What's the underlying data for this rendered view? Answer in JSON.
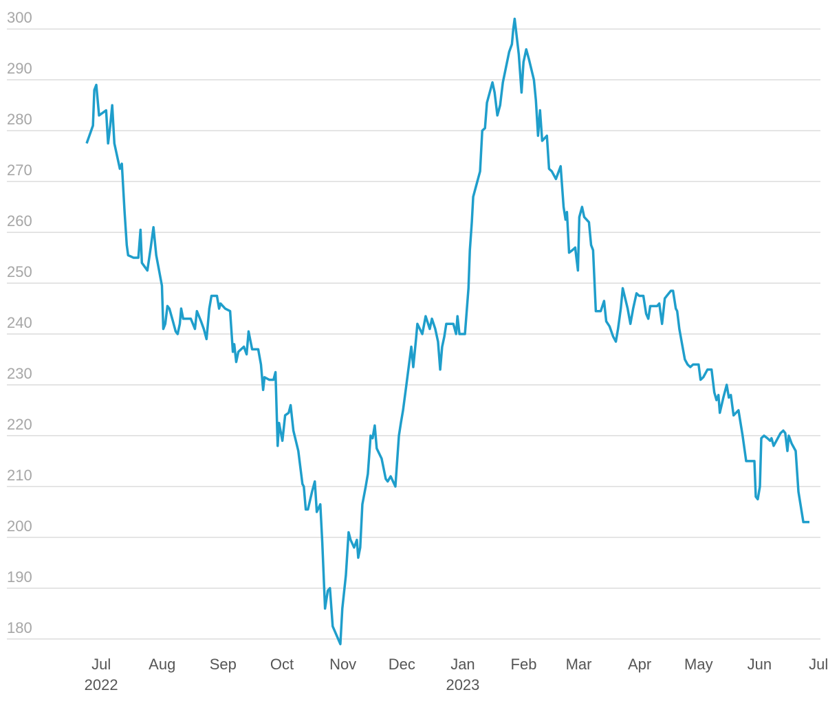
{
  "chart_data": {
    "type": "line",
    "x": [
      -7.4,
      -4.2,
      -3.5,
      -2.5,
      -1.1,
      2.5,
      3.5,
      4.6,
      5.6,
      6.7,
      9.5,
      10.5,
      11.9,
      13.0,
      13.7,
      16.5,
      18.9,
      20.0,
      20.7,
      23.5,
      25.2,
      26.6,
      28.0,
      30.9,
      31.6,
      32.6,
      33.7,
      34.7,
      36.5,
      37.9,
      38.9,
      40.0,
      40.7,
      41.7,
      45.6,
      47.7,
      48.7,
      50.8,
      52.2,
      53.6,
      55.0,
      56.1,
      58.9,
      60.0,
      60.7,
      63.1,
      65.6,
      67.0,
      67.7,
      68.7,
      69.8,
      72.6,
      74.0,
      75.0,
      76.8,
      79.9,
      81.3,
      82.4,
      83.1,
      85.5,
      87.7,
      88.7,
      89.8,
      90.5,
      92.2,
      93.6,
      95.4,
      96.4,
      97.8,
      100.3,
      102.4,
      103.1,
      104.1,
      105.2,
      107.3,
      108.7,
      109.7,
      111.5,
      112.5,
      113.9,
      115.3,
      116.4,
      117.8,
      121.7,
      122.7,
      124.5,
      125.9,
      126.9,
      128.7,
      130.1,
      130.8,
      131.8,
      132.9,
      134.6,
      135.7,
      137.1,
      138.1,
      139.2,
      140.2,
      142.7,
      144.8,
      145.8,
      147.3,
      149.7,
      151.5,
      152.5,
      153.6,
      155.3,
      157.8,
      158.8,
      160.2,
      160.9,
      163.4,
      165.1,
      167.2,
      168.3,
      170.0,
      171.4,
      172.5,
      173.5,
      174.6,
      175.6,
      179.2,
      180.6,
      181.3,
      182.3,
      185.1,
      186.9,
      187.6,
      188.6,
      189.3,
      190.7,
      192.1,
      192.8,
      193.9,
      195.3,
      196.3,
      199.1,
      200.2,
      201.6,
      203.0,
      204.4,
      207.6,
      209.0,
      209.7,
      210.4,
      212.5,
      213.9,
      214.9,
      216.3,
      217.7,
      220.2,
      221.2,
      222.3,
      223.3,
      224.4,
      226.8,
      227.9,
      229.3,
      231.4,
      233.8,
      235.3,
      236.3,
      237.0,
      238.1,
      239.8,
      241.2,
      242.6,
      243.3,
      244.7,
      245.8,
      248.2,
      249.3,
      250.3,
      251.7,
      254.2,
      255.9,
      257.0,
      258.7,
      260.5,
      261.9,
      263.0,
      264.4,
      265.4,
      267.9,
      269.3,
      270.7,
      272.4,
      273.8,
      275.9,
      277.3,
      278.4,
      279.4,
      282.9,
      284.0,
      285.4,
      286.8,
      287.8,
      289.9,
      291.0,
      292.4,
      293.1,
      294.2,
      295.6,
      297.0,
      298.4,
      299.8,
      301.2,
      304.0,
      305.0,
      306.4,
      308.5,
      310.6,
      312.0,
      313.1,
      314.1,
      314.8,
      316.6,
      318.3,
      319.4,
      320.4,
      321.8,
      324.3,
      326.4,
      328.2,
      332.4,
      333.1,
      334.1,
      335.2,
      335.9,
      337.3,
      339.0,
      340.4,
      341.1,
      342.2,
      343.6,
      345.7,
      347.1,
      348.1,
      349.2,
      349.9,
      351.3,
      353.4,
      354.8,
      357.3,
      360.4
    ],
    "series": [
      {
        "color": "#1f9ecb",
        "values": [
          277.5,
          281,
          288,
          289,
          283,
          284,
          277.5,
          281,
          285,
          277.5,
          272.5,
          273.5,
          264,
          257.5,
          255.5,
          255,
          255,
          260.5,
          254,
          252.5,
          257,
          261,
          255.5,
          249.5,
          241,
          242,
          245.5,
          245,
          242.5,
          240.5,
          240,
          242,
          245,
          243,
          243,
          241,
          244.5,
          242.5,
          241,
          239,
          245,
          247.5,
          247.5,
          245,
          246,
          245,
          244.5,
          236.5,
          238,
          234.5,
          236.5,
          237.5,
          236,
          240.5,
          237,
          237,
          234,
          229,
          231.5,
          231,
          231,
          232.5,
          218,
          222.5,
          219,
          224,
          224.5,
          226,
          221,
          217,
          210.5,
          210,
          205.5,
          205.5,
          209,
          211,
          205,
          206.5,
          199,
          186,
          189.5,
          190,
          182.5,
          179,
          186,
          192.5,
          201,
          199.5,
          198,
          199.5,
          196,
          198,
          206.5,
          210,
          212.5,
          220,
          219.5,
          222,
          217.5,
          215.5,
          211.5,
          211,
          212,
          210,
          220,
          222.5,
          225,
          230,
          237.5,
          233.5,
          239,
          242,
          240,
          243.5,
          241,
          243,
          241,
          238.5,
          233,
          237.5,
          239.5,
          242,
          242,
          240,
          243.5,
          240,
          240,
          249,
          256.5,
          262,
          267,
          269,
          271,
          272,
          280,
          280.5,
          285.5,
          289.5,
          287.5,
          283,
          285,
          289.5,
          295.5,
          297,
          300,
          302,
          295,
          287.5,
          293.5,
          296,
          294,
          290,
          286,
          279,
          284,
          278,
          279,
          272.5,
          272,
          270.5,
          273,
          265,
          262.5,
          264,
          256,
          256.5,
          257,
          252.5,
          263,
          265,
          263,
          262,
          257.5,
          256.5,
          244.5,
          244.5,
          246.5,
          242.5,
          241.5,
          239.5,
          238.5,
          241,
          245,
          249,
          245,
          242,
          245,
          248,
          247.5,
          247.5,
          244,
          243,
          245.5,
          245.5,
          246,
          242,
          247,
          247.5,
          248.5,
          248.5,
          245,
          244.5,
          241,
          238,
          235,
          234,
          233.5,
          234,
          234,
          231,
          231.5,
          233,
          233,
          228.5,
          227,
          228,
          224.5,
          227.5,
          230,
          227.5,
          228,
          224,
          225,
          220,
          215,
          215,
          208,
          207.5,
          210,
          219.5,
          220,
          219.5,
          219,
          219.5,
          218,
          219,
          220.5,
          221,
          220.5,
          217,
          220,
          218.5,
          217,
          209,
          203,
          203
        ]
      }
    ],
    "xlim": [
      -48,
      366
    ],
    "xticks": [
      {
        "value": 0,
        "label": "Jul"
      },
      {
        "value": 31,
        "label": "Aug"
      },
      {
        "value": 62,
        "label": "Sep"
      },
      {
        "value": 92,
        "label": "Oct"
      },
      {
        "value": 123,
        "label": "Nov"
      },
      {
        "value": 153,
        "label": "Dec"
      },
      {
        "value": 184,
        "label": "Jan"
      },
      {
        "value": 215,
        "label": "Feb"
      },
      {
        "value": 243,
        "label": "Mar"
      },
      {
        "value": 274,
        "label": "Apr"
      },
      {
        "value": 304,
        "label": "May"
      },
      {
        "value": 335,
        "label": "Jun"
      },
      {
        "value": 365,
        "label": "Jul"
      }
    ],
    "x_year_labels": [
      {
        "value": 0,
        "label": "2022"
      },
      {
        "value": 184,
        "label": "2023"
      }
    ],
    "ylim": [
      177,
      303
    ],
    "yticks": [
      180,
      190,
      200,
      210,
      220,
      230,
      240,
      250,
      260,
      270,
      280,
      290,
      300
    ],
    "grid": true
  }
}
